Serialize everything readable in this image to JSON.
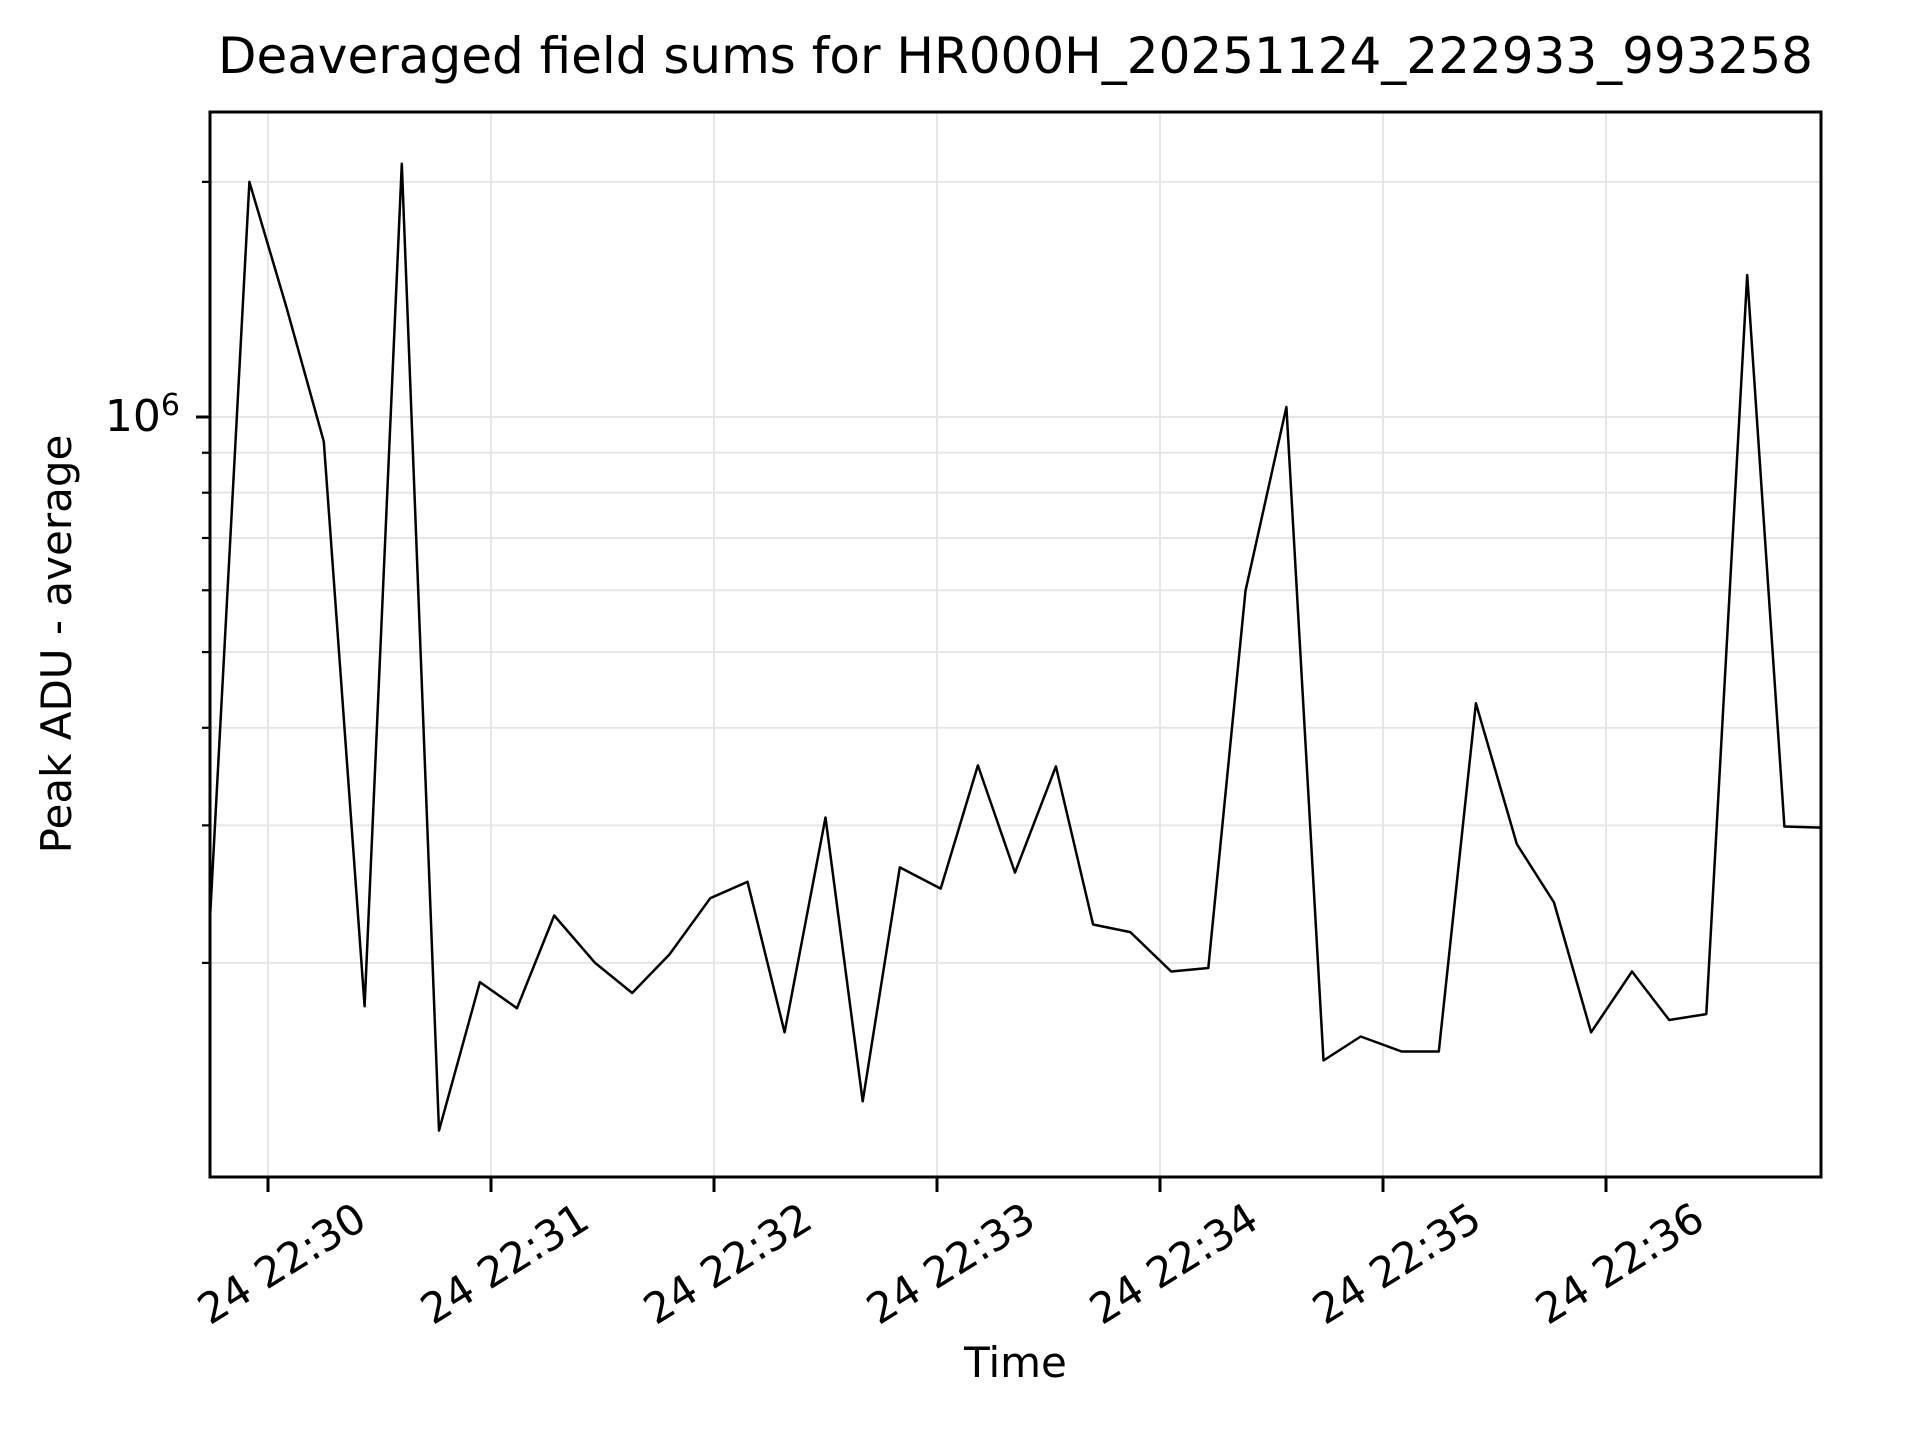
{
  "title": "Deaveraged field sums for HR000H_20251124_222933_993258",
  "y_axis": {
    "scale": "log",
    "major_tick": {
      "base": "10",
      "exponent": "6",
      "value": 1000000
    },
    "minor_tick_values": [
      2000000,
      900000,
      800000,
      700000,
      600000,
      500000,
      400000,
      300000,
      200000
    ]
  },
  "x_axis": {
    "tick_labels": [
      "24 22:30",
      "24 22:31",
      "24 22:32",
      "24 22:33",
      "24 22:34",
      "24 22:35",
      "24 22:36"
    ],
    "tick_times": [
      "22:30:00",
      "22:31:00",
      "22:32:00",
      "22:33:00",
      "22:34:00",
      "22:35:00",
      "22:36:00"
    ]
  },
  "colors": {
    "line": "#000000",
    "grid": "#e6e6e6",
    "spine": "#000000",
    "text": "#000000",
    "background": "#ffffff"
  },
  "chart_data": {
    "type": "line",
    "title": "Deaveraged field sums for HR000H_20251124_222933_993258",
    "xlabel": "Time",
    "ylabel": "Peak ADU - average",
    "yscale": "log",
    "ylim": [
      106000,
      2460000
    ],
    "xlim_time": [
      "22:29:44",
      "22:36:58"
    ],
    "grid": true,
    "legend": false,
    "series_name": "field sums",
    "points": [
      {
        "time": "22:29:44",
        "value": 210000
      },
      {
        "time": "22:29:55",
        "value": 2000000
      },
      {
        "time": "22:30:05",
        "value": 1380000
      },
      {
        "time": "22:30:15",
        "value": 930000
      },
      {
        "time": "22:30:26",
        "value": 176000
      },
      {
        "time": "22:30:36",
        "value": 2110000
      },
      {
        "time": "22:30:46",
        "value": 122000
      },
      {
        "time": "22:30:57",
        "value": 189000
      },
      {
        "time": "22:31:07",
        "value": 175000
      },
      {
        "time": "22:31:17",
        "value": 230000
      },
      {
        "time": "22:31:28",
        "value": 200000
      },
      {
        "time": "22:31:38",
        "value": 183000
      },
      {
        "time": "22:31:48",
        "value": 205000
      },
      {
        "time": "22:31:59",
        "value": 242000
      },
      {
        "time": "22:32:09",
        "value": 254000
      },
      {
        "time": "22:32:19",
        "value": 163000
      },
      {
        "time": "22:32:30",
        "value": 307000
      },
      {
        "time": "22:32:40",
        "value": 133000
      },
      {
        "time": "22:32:50",
        "value": 265000
      },
      {
        "time": "22:33:01",
        "value": 249000
      },
      {
        "time": "22:33:11",
        "value": 358000
      },
      {
        "time": "22:33:21",
        "value": 261000
      },
      {
        "time": "22:33:32",
        "value": 357000
      },
      {
        "time": "22:33:42",
        "value": 224000
      },
      {
        "time": "22:33:52",
        "value": 219000
      },
      {
        "time": "22:34:03",
        "value": 195000
      },
      {
        "time": "22:34:13",
        "value": 197000
      },
      {
        "time": "22:34:23",
        "value": 599000
      },
      {
        "time": "22:34:34",
        "value": 1030000
      },
      {
        "time": "22:34:44",
        "value": 150000
      },
      {
        "time": "22:34:54",
        "value": 161000
      },
      {
        "time": "22:35:05",
        "value": 154000
      },
      {
        "time": "22:35:15",
        "value": 154000
      },
      {
        "time": "22:35:25",
        "value": 430000
      },
      {
        "time": "22:35:36",
        "value": 284000
      },
      {
        "time": "22:35:46",
        "value": 239000
      },
      {
        "time": "22:35:56",
        "value": 163000
      },
      {
        "time": "22:36:07",
        "value": 195000
      },
      {
        "time": "22:36:17",
        "value": 169000
      },
      {
        "time": "22:36:27",
        "value": 172000
      },
      {
        "time": "22:36:38",
        "value": 1520000
      },
      {
        "time": "22:36:48",
        "value": 299000
      },
      {
        "time": "22:36:58",
        "value": 298000
      }
    ]
  }
}
